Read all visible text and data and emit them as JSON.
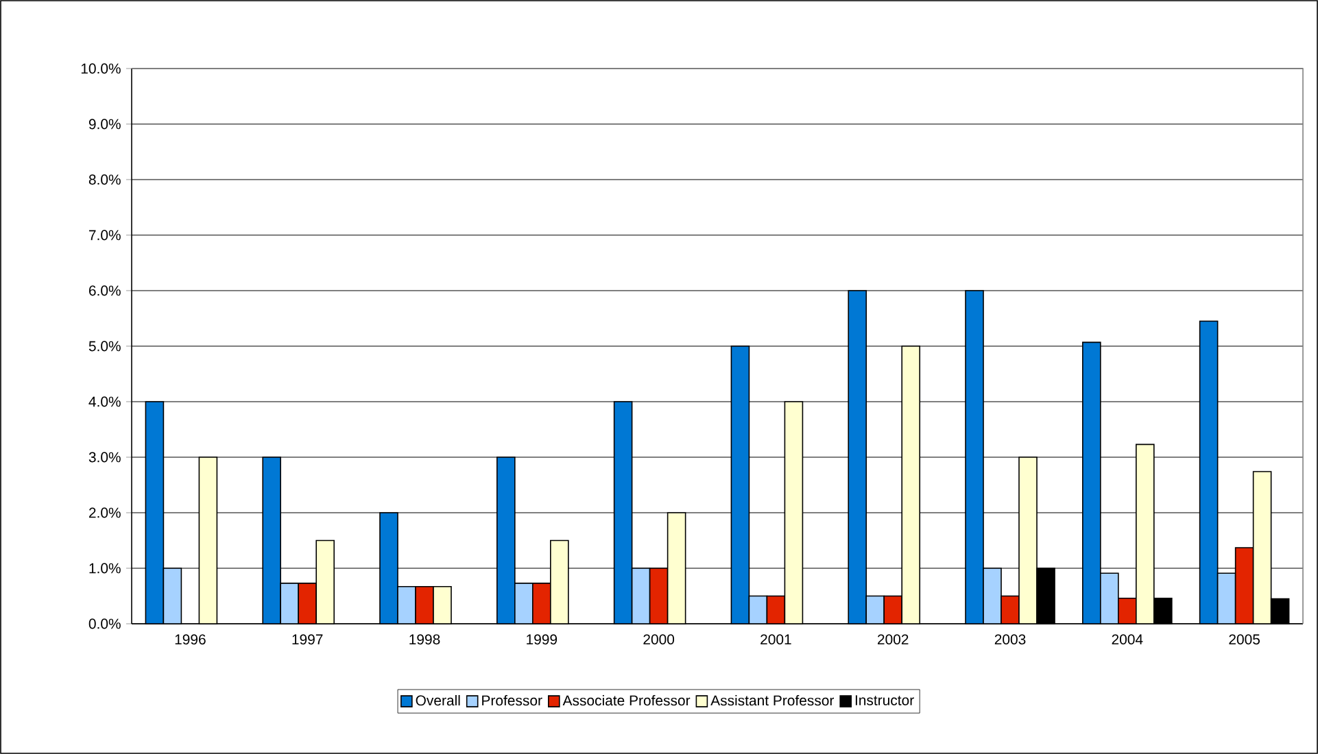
{
  "chart_data": {
    "type": "bar",
    "categories": [
      "1996",
      "1997",
      "1998",
      "1999",
      "2000",
      "2001",
      "2002",
      "2003",
      "2004",
      "2005"
    ],
    "series": [
      {
        "name": "Overall",
        "color": "#0078d4",
        "values": [
          4,
          3,
          2,
          3,
          4,
          5,
          6,
          6,
          5.07,
          5.45
        ]
      },
      {
        "name": "Professor",
        "color": "#a6d2ff",
        "values": [
          1,
          0.73,
          0.67,
          0.73,
          1,
          0.5,
          0.5,
          1,
          0.91,
          0.91
        ]
      },
      {
        "name": "Associate Professor",
        "color": "#e32400",
        "values": [
          null,
          0.73,
          0.67,
          0.73,
          1,
          0.5,
          0.5,
          0.5,
          0.46,
          1.37
        ]
      },
      {
        "name": "Assistant Professor",
        "color": "#ffffd0",
        "values": [
          3,
          1.5,
          0.67,
          1.5,
          2,
          4,
          5,
          3,
          3.23,
          2.74
        ]
      },
      {
        "name": "Instructor",
        "color": "#000000",
        "values": [
          null,
          null,
          null,
          null,
          null,
          null,
          null,
          1,
          0.46,
          0.45
        ]
      }
    ],
    "ylim": [
      0,
      10
    ],
    "yticks": [
      {
        "value": 0,
        "label": "0.0%"
      },
      {
        "value": 1,
        "label": "1.0%"
      },
      {
        "value": 2,
        "label": "2.0%"
      },
      {
        "value": 3,
        "label": "3.0%"
      },
      {
        "value": 4,
        "label": "4.0%"
      },
      {
        "value": 5,
        "label": "5.0%"
      },
      {
        "value": 6,
        "label": "6.0%"
      },
      {
        "value": 7,
        "label": "7.0%"
      },
      {
        "value": 8,
        "label": "8.0%"
      },
      {
        "value": 9,
        "label": "9.0%"
      },
      {
        "value": 10,
        "label": "10.0%"
      }
    ],
    "grid": "y",
    "legend": "bottom"
  }
}
